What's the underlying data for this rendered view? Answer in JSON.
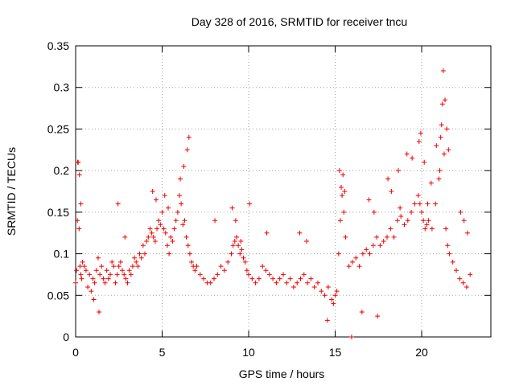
{
  "chart_data": {
    "type": "scatter",
    "title": "Day 328 of 2016, SRMTID for receiver tncu",
    "xlabel": "GPS time / hours",
    "ylabel": "SRMTID / TECUs",
    "xlim": [
      0,
      24
    ],
    "ylim": [
      0,
      0.35
    ],
    "grid": true,
    "marker": "plus",
    "color": "#ee0000",
    "x_ticks": [
      0,
      5,
      10,
      15,
      20
    ],
    "x_tick_labels": [
      "0",
      "5",
      "10",
      "15",
      "20"
    ],
    "y_ticks": [
      0,
      0.05,
      0.1,
      0.15,
      0.2,
      0.25,
      0.3,
      0.35
    ],
    "y_tick_labels": [
      "0",
      "0.05",
      "0.1",
      "0.15",
      "0.2",
      "0.25",
      "0.3",
      "0.35"
    ],
    "series": [
      {
        "name": "SRMTID",
        "x": [
          0.0,
          0.05,
          0.1,
          0.15,
          0.2,
          0.25,
          0.3,
          0.35,
          0.4,
          0.5,
          0.6,
          0.7,
          0.8,
          0.9,
          1.0,
          1.1,
          1.2,
          1.3,
          1.4,
          1.5,
          1.6,
          1.7,
          1.8,
          1.9,
          2.0,
          2.1,
          2.2,
          2.3,
          2.4,
          2.5,
          2.6,
          2.7,
          2.8,
          2.9,
          3.0,
          3.1,
          3.2,
          3.3,
          3.4,
          3.5,
          3.6,
          3.7,
          3.8,
          3.9,
          4.0,
          4.1,
          4.2,
          4.3,
          4.4,
          4.5,
          4.6,
          4.7,
          4.8,
          4.9,
          5.0,
          5.1,
          5.2,
          5.3,
          5.4,
          5.5,
          5.6,
          5.7,
          5.8,
          5.9,
          6.0,
          6.1,
          6.2,
          6.3,
          6.4,
          6.5,
          6.6,
          6.7,
          6.8,
          6.9,
          7.0,
          7.2,
          7.4,
          7.6,
          7.8,
          8.0,
          8.2,
          8.4,
          8.6,
          8.8,
          9.0,
          9.1,
          9.2,
          9.3,
          9.4,
          9.5,
          9.6,
          9.7,
          9.8,
          9.9,
          10.0,
          10.2,
          10.4,
          10.6,
          10.8,
          11.0,
          11.2,
          11.4,
          11.6,
          11.8,
          12.0,
          12.2,
          12.4,
          12.6,
          12.8,
          13.0,
          13.2,
          13.4,
          13.6,
          13.8,
          14.0,
          14.2,
          14.4,
          14.6,
          14.8,
          14.9,
          15.0,
          15.1,
          15.2,
          15.3,
          15.4,
          15.5,
          15.6,
          15.8,
          16.0,
          16.2,
          16.4,
          16.6,
          16.8,
          17.0,
          17.2,
          17.4,
          17.6,
          17.8,
          18.0,
          18.2,
          18.4,
          18.6,
          18.8,
          19.0,
          19.2,
          19.4,
          19.6,
          19.8,
          19.9,
          20.0,
          20.1,
          20.2,
          20.3,
          20.4,
          20.6,
          20.8,
          21.0,
          21.1,
          21.2,
          21.3,
          21.4,
          21.5,
          21.6,
          21.8,
          22.0,
          22.2,
          22.4,
          22.6,
          22.8,
          0.12,
          0.22,
          0.3,
          1.05,
          1.35,
          2.45,
          2.85,
          4.45,
          4.65,
          5.15,
          5.35,
          6.05,
          6.25,
          6.45,
          6.55,
          8.05,
          9.05,
          9.25,
          9.55,
          10.05,
          11.05,
          12.95,
          13.35,
          14.55,
          15.25,
          15.35,
          15.45,
          15.55,
          16.55,
          16.95,
          17.25,
          17.45,
          18.05,
          18.25,
          18.65,
          18.75,
          19.15,
          19.45,
          19.85,
          19.95,
          20.15,
          20.35,
          20.55,
          20.85,
          21.05,
          21.15,
          21.25,
          21.35,
          21.45,
          21.55,
          22.25,
          22.45,
          22.65,
          15.95
        ],
        "y": [
          0.065,
          0.08,
          0.14,
          0.21,
          0.13,
          0.085,
          0.075,
          0.07,
          0.09,
          0.085,
          0.08,
          0.06,
          0.075,
          0.055,
          0.07,
          0.065,
          0.08,
          0.095,
          0.075,
          0.085,
          0.07,
          0.065,
          0.08,
          0.07,
          0.075,
          0.09,
          0.085,
          0.065,
          0.075,
          0.085,
          0.09,
          0.08,
          0.075,
          0.07,
          0.065,
          0.08,
          0.075,
          0.085,
          0.095,
          0.09,
          0.085,
          0.1,
          0.095,
          0.11,
          0.1,
          0.115,
          0.12,
          0.13,
          0.125,
          0.12,
          0.115,
          0.13,
          0.14,
          0.135,
          0.15,
          0.13,
          0.125,
          0.11,
          0.1,
          0.12,
          0.115,
          0.13,
          0.14,
          0.15,
          0.17,
          0.16,
          0.135,
          0.14,
          0.12,
          0.11,
          0.1,
          0.09,
          0.085,
          0.08,
          0.085,
          0.075,
          0.07,
          0.065,
          0.065,
          0.07,
          0.075,
          0.085,
          0.08,
          0.09,
          0.1,
          0.11,
          0.115,
          0.12,
          0.11,
          0.1,
          0.105,
          0.095,
          0.09,
          0.08,
          0.075,
          0.07,
          0.065,
          0.07,
          0.085,
          0.08,
          0.075,
          0.07,
          0.065,
          0.07,
          0.075,
          0.065,
          0.07,
          0.06,
          0.065,
          0.07,
          0.075,
          0.065,
          0.07,
          0.06,
          0.065,
          0.055,
          0.05,
          0.06,
          0.045,
          0.04,
          0.05,
          0.055,
          0.1,
          0.14,
          0.17,
          0.15,
          0.12,
          0.085,
          0.09,
          0.095,
          0.085,
          0.1,
          0.105,
          0.1,
          0.11,
          0.12,
          0.11,
          0.115,
          0.12,
          0.13,
          0.12,
          0.14,
          0.145,
          0.135,
          0.14,
          0.15,
          0.16,
          0.17,
          0.16,
          0.15,
          0.14,
          0.13,
          0.135,
          0.14,
          0.13,
          0.16,
          0.19,
          0.24,
          0.28,
          0.22,
          0.13,
          0.11,
          0.1,
          0.09,
          0.08,
          0.07,
          0.065,
          0.06,
          0.075,
          0.21,
          0.195,
          0.16,
          0.045,
          0.03,
          0.16,
          0.12,
          0.175,
          0.165,
          0.17,
          0.155,
          0.19,
          0.205,
          0.225,
          0.24,
          0.14,
          0.155,
          0.14,
          0.115,
          0.16,
          0.125,
          0.125,
          0.115,
          0.02,
          0.2,
          0.18,
          0.195,
          0.175,
          0.03,
          0.165,
          0.15,
          0.025,
          0.19,
          0.175,
          0.2,
          0.155,
          0.22,
          0.215,
          0.235,
          0.245,
          0.21,
          0.16,
          0.185,
          0.23,
          0.2,
          0.255,
          0.32,
          0.285,
          0.25,
          0.225,
          0.15,
          0.14,
          0.125,
          0.0
        ]
      }
    ]
  }
}
